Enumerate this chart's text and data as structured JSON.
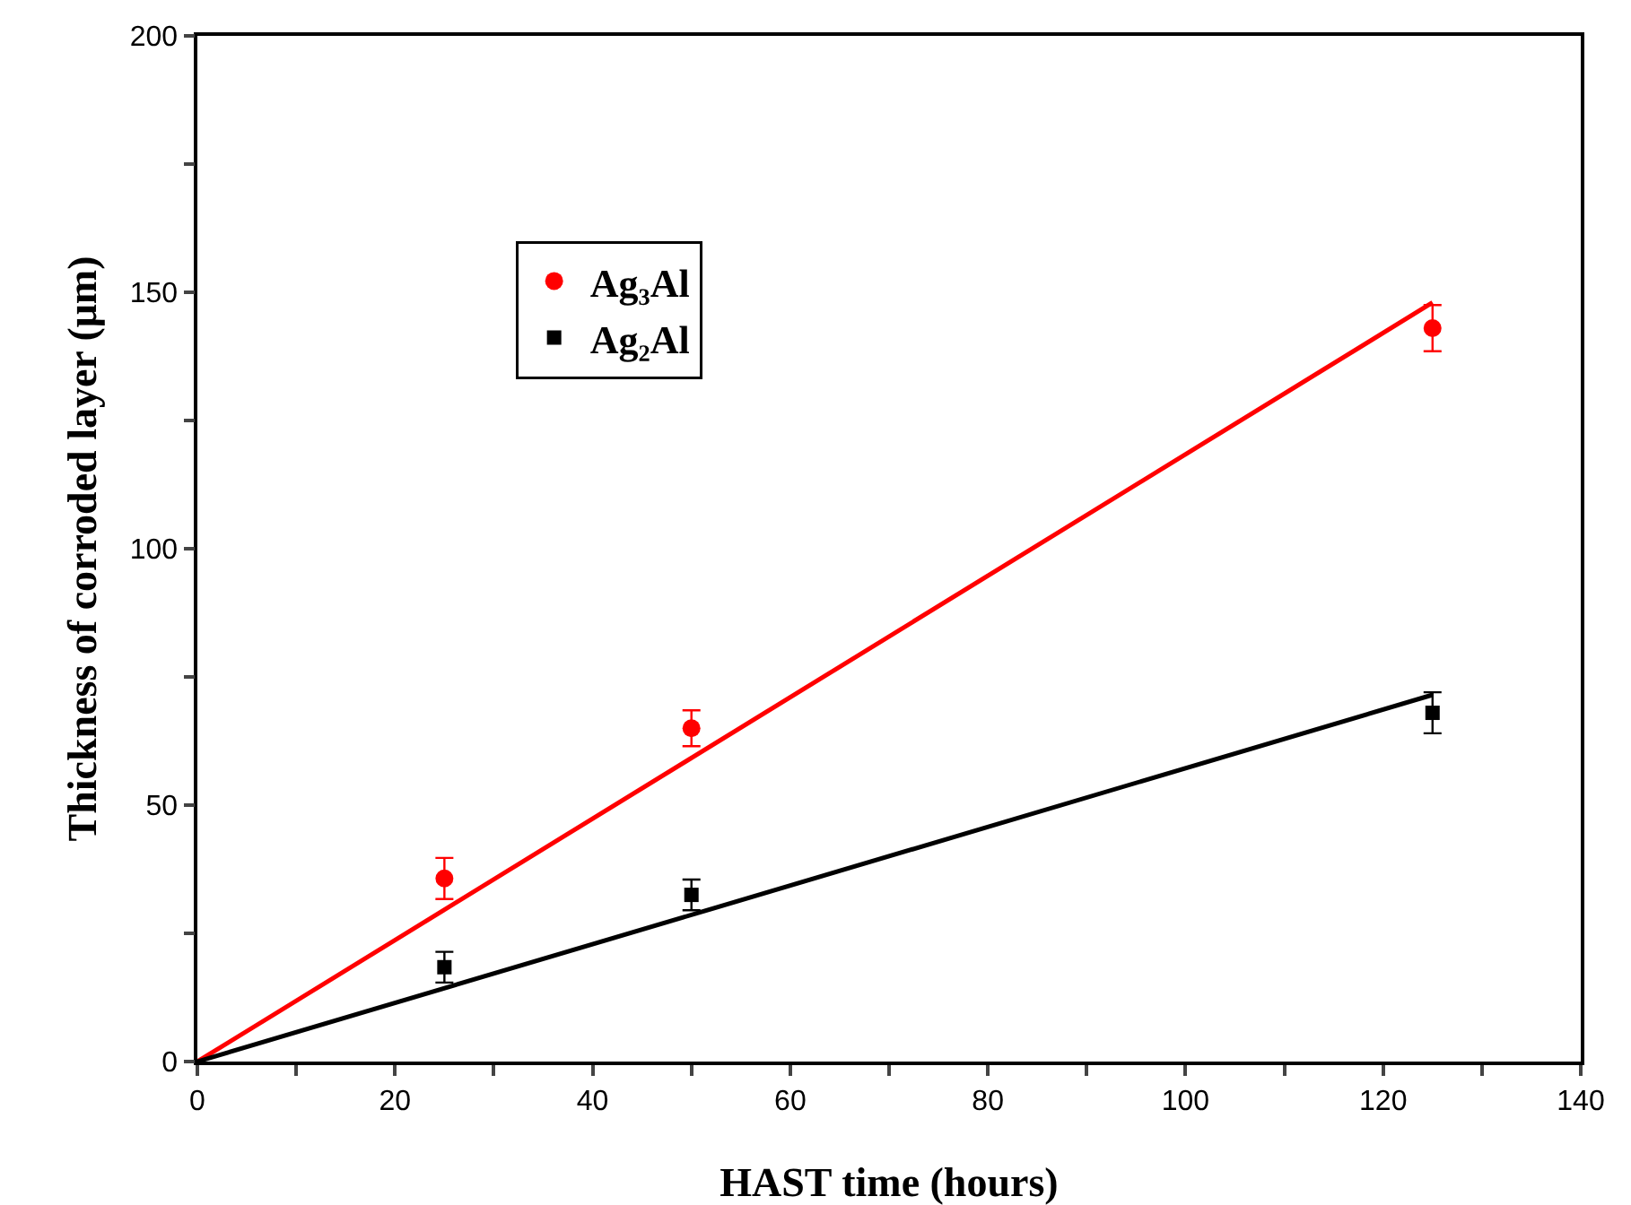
{
  "chart_data": {
    "type": "scatter",
    "xlabel": "HAST time (hours)",
    "ylabel": "Thickness of corroded layer (μm)",
    "xlim": [
      0,
      140
    ],
    "xticks": [
      0,
      {
        "value": 10,
        "label": null
      },
      20,
      {
        "value": 30,
        "label": null
      },
      40,
      {
        "value": 50,
        "label": null
      },
      60,
      {
        "value": 70,
        "label": null
      },
      80,
      {
        "value": 90,
        "label": null
      },
      100,
      {
        "value": 110,
        "label": null
      },
      120,
      {
        "value": 130,
        "label": null
      },
      140
    ],
    "ylim": [
      0,
      200
    ],
    "yticks": [
      0,
      {
        "value": 25,
        "label": null
      },
      50,
      {
        "value": 75,
        "label": null
      },
      100,
      {
        "value": 125,
        "label": null
      },
      150,
      {
        "value": 175,
        "label": null
      },
      200
    ],
    "grid": false,
    "legend": "top left",
    "series": [
      {
        "name": "Ag₃Al",
        "color": "#ff0000",
        "marker": "circle",
        "x": [
          25,
          50,
          125
        ],
        "values": [
          35.7,
          65,
          143
        ],
        "errors": [
          4,
          3.5,
          4.5
        ]
      },
      {
        "name": "Ag₂Al",
        "color": "#000000",
        "marker": "square",
        "x": [
          25,
          50,
          125
        ],
        "values": [
          18.4,
          32.5,
          68
        ],
        "errors": [
          3,
          3,
          4
        ]
      },
      {
        "type": "line",
        "color": "#ff0000",
        "marker": "none",
        "x": [
          0,
          125
        ],
        "values": [
          0,
          148
        ]
      },
      {
        "type": "line",
        "color": "#000000",
        "marker": "none",
        "x": [
          0,
          125
        ],
        "values": [
          0,
          71.5
        ]
      }
    ]
  }
}
